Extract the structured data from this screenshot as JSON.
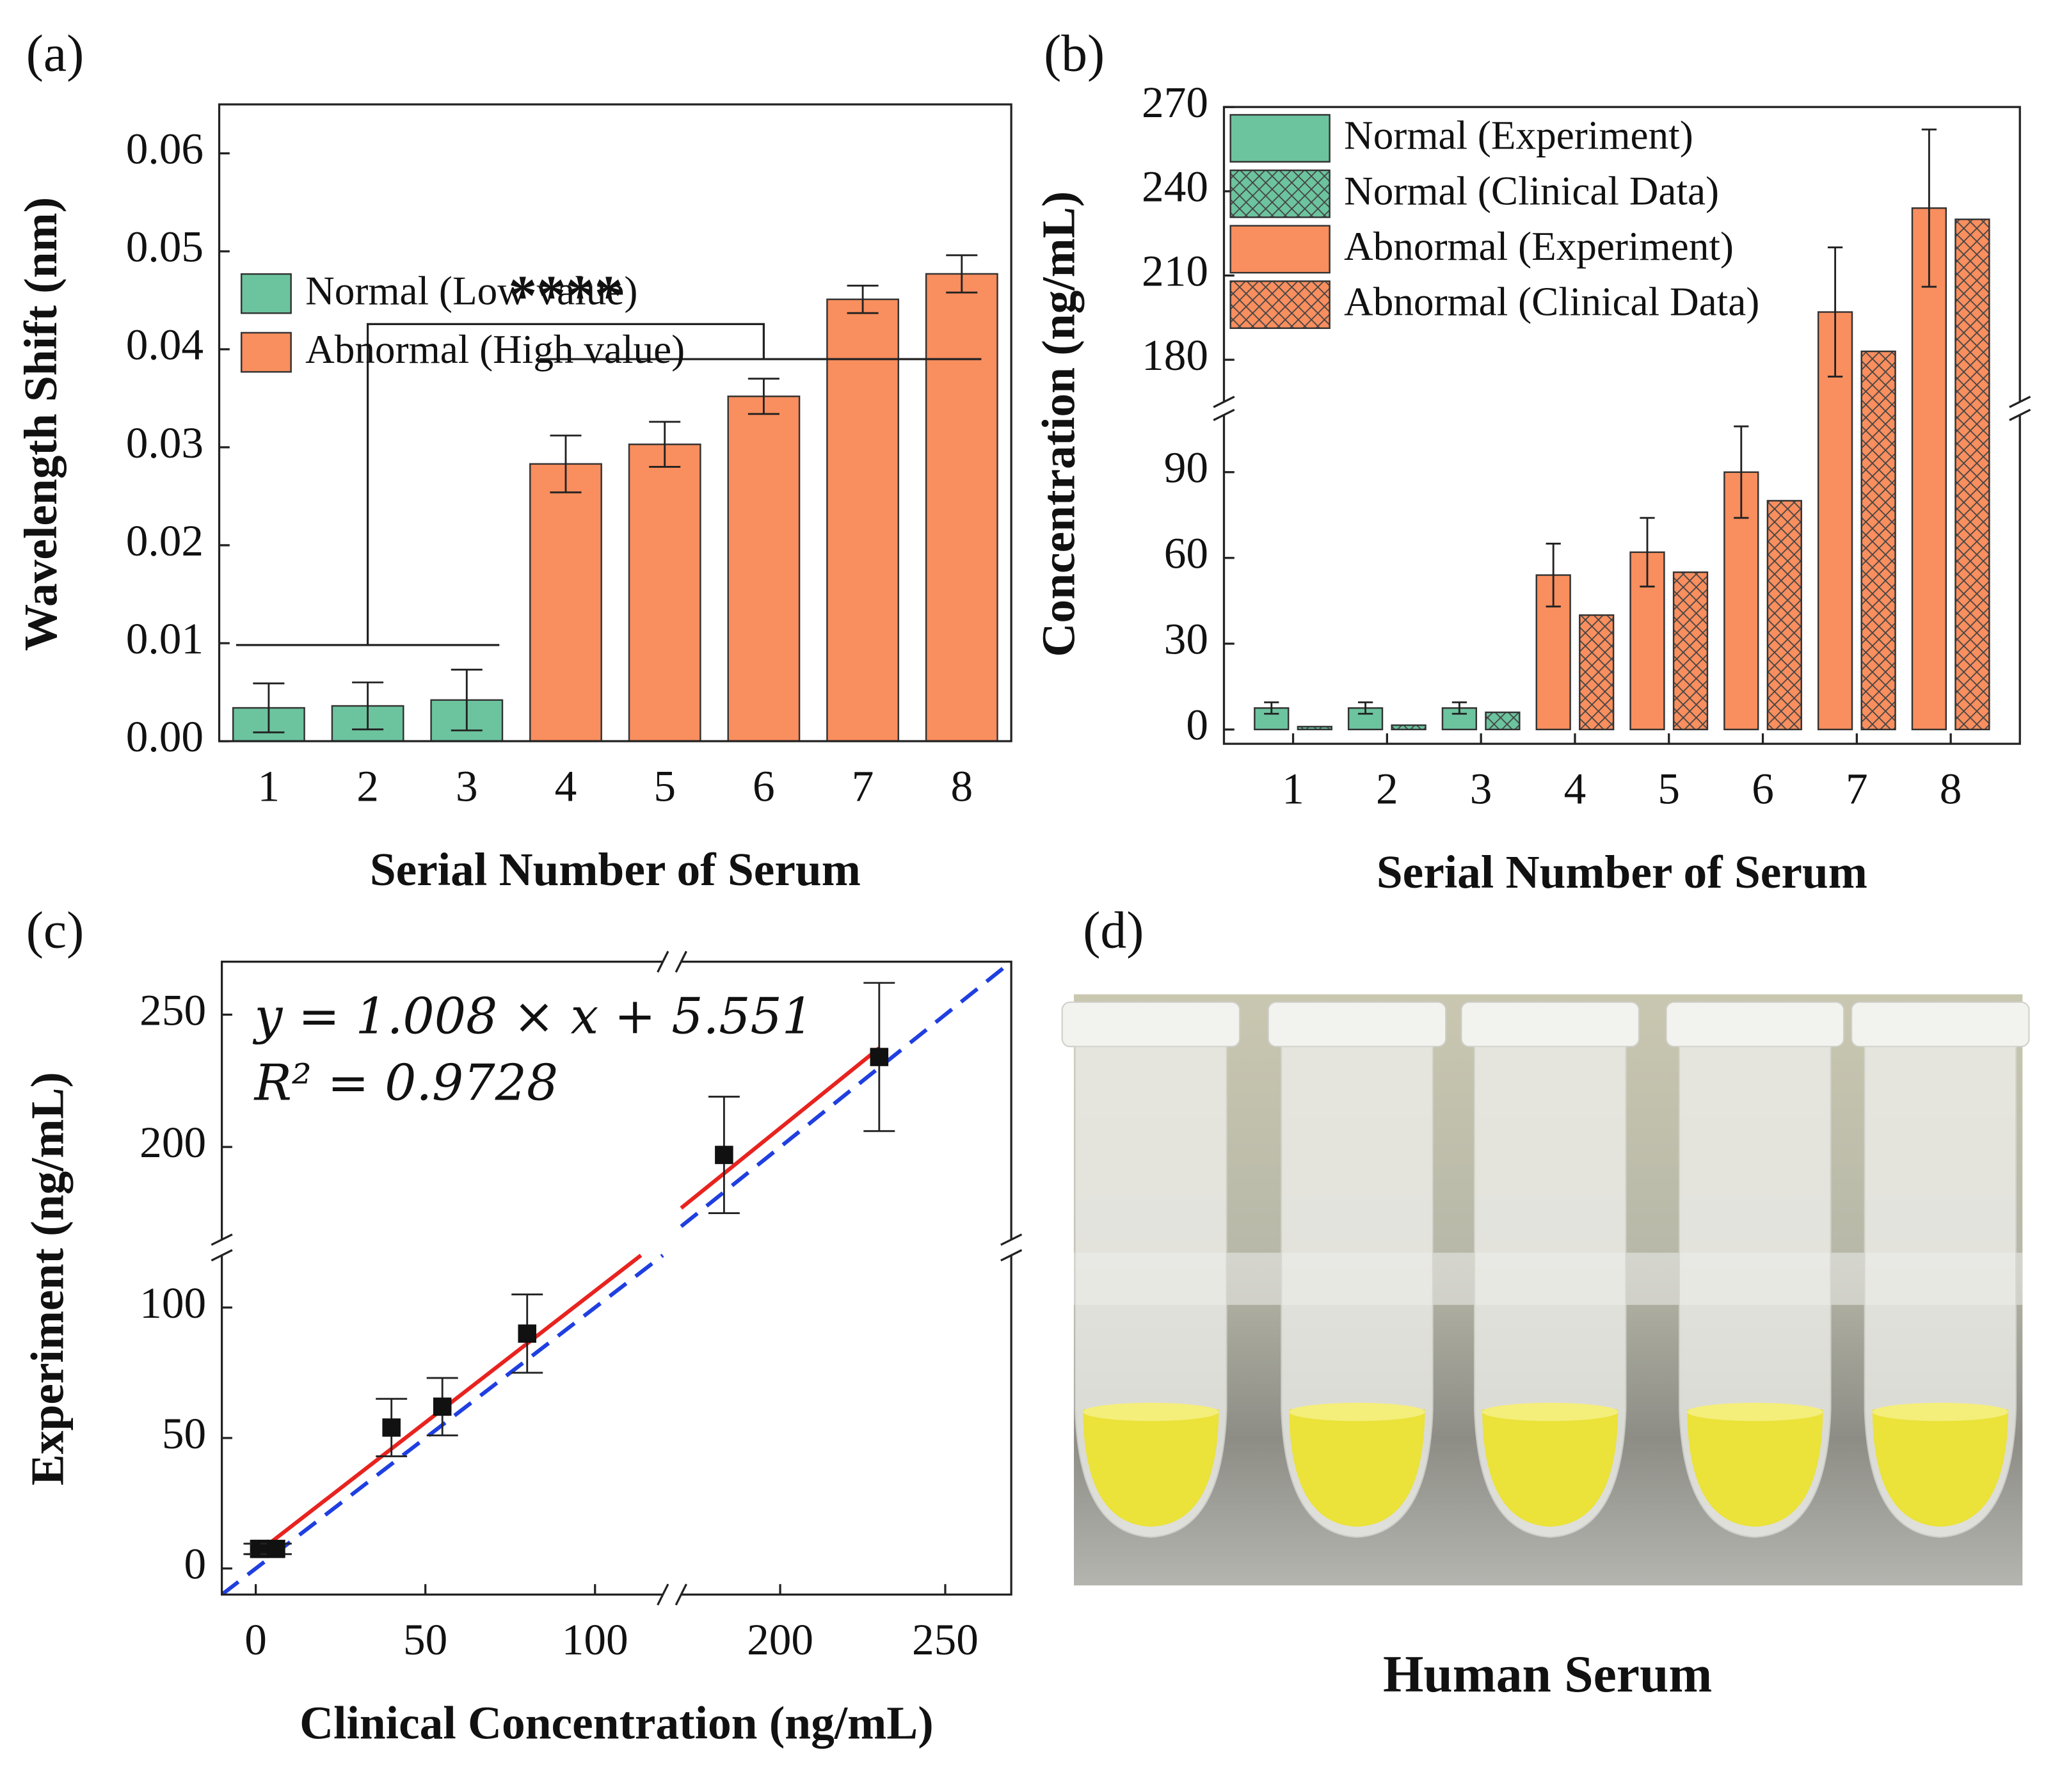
{
  "chart_data": [
    {
      "type": "bar",
      "label": "(a)",
      "xlabel": "Serial Number of Serum",
      "ylabel": "Wavelength Shift (nm)",
      "annotation": "****",
      "categories": [
        "1",
        "2",
        "3",
        "4",
        "5",
        "6",
        "7",
        "8"
      ],
      "series": [
        {
          "name": "Normal (Low value)",
          "color": "#6cc49f",
          "values": [
            0.0034,
            0.0036,
            0.0042,
            null,
            null,
            null,
            null,
            null
          ],
          "errors": [
            0.0025,
            0.0024,
            0.0031,
            null,
            null,
            null,
            null,
            null
          ]
        },
        {
          "name": "Abnormal (High value)",
          "color": "#f98e5e",
          "values": [
            null,
            null,
            null,
            0.0283,
            0.0303,
            0.0352,
            0.0451,
            0.0477
          ],
          "errors": [
            null,
            null,
            null,
            0.0029,
            0.0023,
            0.0018,
            0.0014,
            0.0019
          ]
        }
      ],
      "ylim": [
        0,
        0.065
      ],
      "yticks": [
        {
          "value": 0,
          "label": "0.00"
        },
        0.01,
        0.02,
        0.03,
        0.04,
        0.05,
        0.06
      ],
      "legend": "upper left"
    },
    {
      "type": "bar",
      "label": "(b)",
      "xlabel": "Serial Number of Serum",
      "ylabel": "Concentration (ng/mL)",
      "categories": [
        "1",
        "2",
        "3",
        "4",
        "5",
        "6",
        "7",
        "8"
      ],
      "series": [
        {
          "name": "Normal (Experiment)",
          "color": "#6cc49f",
          "hatch": false,
          "values": [
            7.5,
            7.5,
            7.5,
            null,
            null,
            null,
            null,
            null
          ],
          "errors": [
            2,
            2,
            2,
            null,
            null,
            null,
            null,
            null
          ]
        },
        {
          "name": "Normal (Clinical Data)",
          "color": "#6cc49f",
          "hatch": true,
          "values": [
            1,
            1.5,
            6,
            null,
            null,
            null,
            null,
            null
          ]
        },
        {
          "name": "Abnormal (Experiment)",
          "color": "#f98e5e",
          "hatch": false,
          "values": [
            null,
            null,
            null,
            54,
            62,
            90,
            197,
            234
          ],
          "errors": [
            null,
            null,
            null,
            11,
            12,
            16,
            23,
            28
          ]
        },
        {
          "name": "Abnormal (Clinical Data)",
          "color": "#f98e5e",
          "hatch": true,
          "values": [
            null,
            null,
            null,
            40,
            55,
            80,
            183,
            230
          ]
        }
      ],
      "ylim": [
        -5,
        270
      ],
      "ybreak": [
        110,
        165
      ],
      "yticks": [
        0,
        30,
        60,
        90,
        180,
        210,
        240,
        270
      ],
      "legend": "upper left"
    },
    {
      "type": "scatter",
      "label": "(c)",
      "xlabel": "Clinical Concentration (ng/mL)",
      "ylabel": "Experiment (ng/mL)",
      "annotations": [
        "y = 1.008 × x + 5.551",
        "R² = 0.9728"
      ],
      "x": [
        1,
        1.5,
        6,
        40,
        55,
        80,
        183,
        230
      ],
      "y": [
        7.5,
        7.5,
        7.5,
        54,
        62,
        90,
        197,
        234
      ],
      "yerr": [
        2,
        2,
        2,
        11,
        11,
        15,
        22,
        28
      ],
      "fit": {
        "slope": 1.008,
        "intercept": 5.551,
        "color": "#e8231f"
      },
      "reference_color": "#1f3fe0",
      "marker_color": "#111111",
      "xlim": [
        -10,
        270
      ],
      "xbreak": [
        120,
        170
      ],
      "xticks": [
        0,
        50,
        100,
        200,
        250
      ],
      "ylim": [
        -10,
        270
      ],
      "ybreak": [
        120,
        165
      ],
      "yticks": [
        0,
        50,
        100,
        200,
        250
      ]
    }
  ],
  "photo": {
    "label": "(d)",
    "caption": "Human Serum"
  }
}
